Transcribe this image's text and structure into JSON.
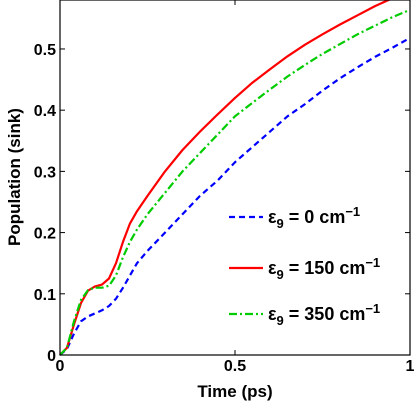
{
  "chart_data": {
    "type": "line",
    "title": "",
    "xlabel": "Time (ps)",
    "ylabel": "Population (sink)",
    "xlim": [
      0,
      1
    ],
    "ylim": [
      0,
      0.58
    ],
    "xticks": [
      0,
      0.5,
      1
    ],
    "xtick_labels": [
      "0",
      "0.5",
      "1"
    ],
    "yticks": [
      0,
      0.1,
      0.2,
      0.3,
      0.4,
      0.5
    ],
    "ytick_labels": [
      "0",
      "0.1",
      "0.2",
      "0.3",
      "0.4",
      "0.5"
    ],
    "grid": false,
    "legend_position": "center-right",
    "x": [
      0,
      0.02,
      0.04,
      0.06,
      0.08,
      0.1,
      0.12,
      0.14,
      0.16,
      0.18,
      0.2,
      0.22,
      0.25,
      0.3,
      0.35,
      0.4,
      0.45,
      0.5,
      0.55,
      0.6,
      0.65,
      0.7,
      0.75,
      0.8,
      0.85,
      0.9,
      0.95,
      1.0
    ],
    "series": [
      {
        "name_parts": [
          "ε",
          "9",
          " = 0 cm",
          "−1"
        ],
        "color": "#0000ff",
        "dash": "dashed",
        "values": [
          0,
          0.01,
          0.035,
          0.055,
          0.063,
          0.068,
          0.073,
          0.08,
          0.092,
          0.11,
          0.13,
          0.15,
          0.17,
          0.2,
          0.23,
          0.26,
          0.285,
          0.315,
          0.34,
          0.365,
          0.39,
          0.41,
          0.432,
          0.452,
          0.47,
          0.487,
          0.502,
          0.518
        ]
      },
      {
        "name_parts": [
          "ε",
          "9",
          " = 150 cm",
          "−1"
        ],
        "color": "#ff0000",
        "dash": "solid",
        "values": [
          0,
          0.012,
          0.05,
          0.085,
          0.105,
          0.112,
          0.115,
          0.125,
          0.15,
          0.185,
          0.215,
          0.235,
          0.26,
          0.3,
          0.335,
          0.365,
          0.393,
          0.42,
          0.445,
          0.467,
          0.488,
          0.507,
          0.524,
          0.54,
          0.555,
          0.57,
          0.583,
          0.596
        ]
      },
      {
        "name_parts": [
          "ε",
          "9",
          " = 350 cm",
          "−1"
        ],
        "color": "#00cc00",
        "dash": "dashdot",
        "values": [
          0,
          0.012,
          0.055,
          0.09,
          0.106,
          0.11,
          0.11,
          0.113,
          0.13,
          0.16,
          0.185,
          0.205,
          0.23,
          0.265,
          0.3,
          0.33,
          0.36,
          0.39,
          0.412,
          0.434,
          0.455,
          0.474,
          0.492,
          0.508,
          0.524,
          0.538,
          0.552,
          0.564
        ]
      }
    ]
  }
}
